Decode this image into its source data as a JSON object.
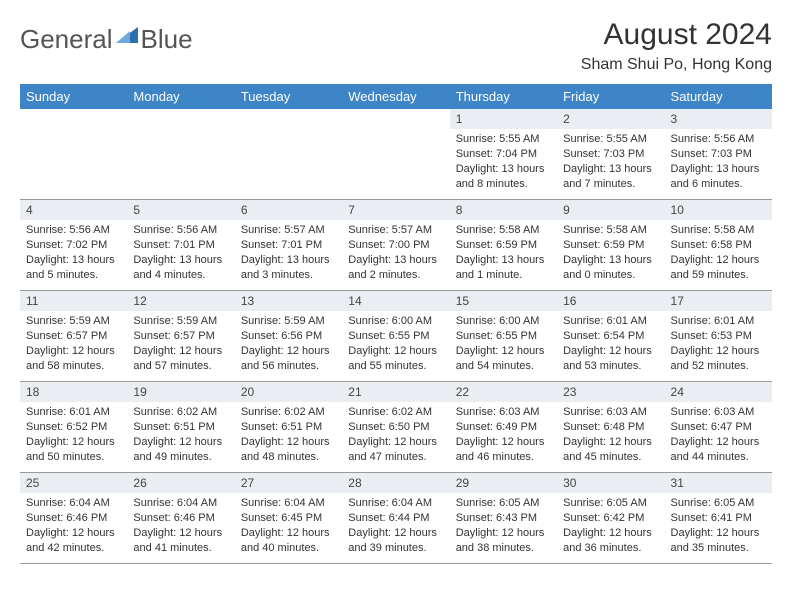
{
  "brand": {
    "name_a": "General",
    "name_b": "Blue",
    "mark_color": "#2a6fb0"
  },
  "header": {
    "month_title": "August 2024",
    "location": "Sham Shui Po, Hong Kong"
  },
  "calendar": {
    "header_bg": "#3d85c6",
    "header_fg": "#ffffff",
    "dayrow_bg": "#eaeef2",
    "grid_line": "#999999",
    "columns": [
      "Sunday",
      "Monday",
      "Tuesday",
      "Wednesday",
      "Thursday",
      "Friday",
      "Saturday"
    ],
    "weeks": [
      [
        {
          "n": "",
          "sr": "",
          "ss": "",
          "dl": ""
        },
        {
          "n": "",
          "sr": "",
          "ss": "",
          "dl": ""
        },
        {
          "n": "",
          "sr": "",
          "ss": "",
          "dl": ""
        },
        {
          "n": "",
          "sr": "",
          "ss": "",
          "dl": ""
        },
        {
          "n": "1",
          "sr": "Sunrise: 5:55 AM",
          "ss": "Sunset: 7:04 PM",
          "dl": "Daylight: 13 hours and 8 minutes."
        },
        {
          "n": "2",
          "sr": "Sunrise: 5:55 AM",
          "ss": "Sunset: 7:03 PM",
          "dl": "Daylight: 13 hours and 7 minutes."
        },
        {
          "n": "3",
          "sr": "Sunrise: 5:56 AM",
          "ss": "Sunset: 7:03 PM",
          "dl": "Daylight: 13 hours and 6 minutes."
        }
      ],
      [
        {
          "n": "4",
          "sr": "Sunrise: 5:56 AM",
          "ss": "Sunset: 7:02 PM",
          "dl": "Daylight: 13 hours and 5 minutes."
        },
        {
          "n": "5",
          "sr": "Sunrise: 5:56 AM",
          "ss": "Sunset: 7:01 PM",
          "dl": "Daylight: 13 hours and 4 minutes."
        },
        {
          "n": "6",
          "sr": "Sunrise: 5:57 AM",
          "ss": "Sunset: 7:01 PM",
          "dl": "Daylight: 13 hours and 3 minutes."
        },
        {
          "n": "7",
          "sr": "Sunrise: 5:57 AM",
          "ss": "Sunset: 7:00 PM",
          "dl": "Daylight: 13 hours and 2 minutes."
        },
        {
          "n": "8",
          "sr": "Sunrise: 5:58 AM",
          "ss": "Sunset: 6:59 PM",
          "dl": "Daylight: 13 hours and 1 minute."
        },
        {
          "n": "9",
          "sr": "Sunrise: 5:58 AM",
          "ss": "Sunset: 6:59 PM",
          "dl": "Daylight: 13 hours and 0 minutes."
        },
        {
          "n": "10",
          "sr": "Sunrise: 5:58 AM",
          "ss": "Sunset: 6:58 PM",
          "dl": "Daylight: 12 hours and 59 minutes."
        }
      ],
      [
        {
          "n": "11",
          "sr": "Sunrise: 5:59 AM",
          "ss": "Sunset: 6:57 PM",
          "dl": "Daylight: 12 hours and 58 minutes."
        },
        {
          "n": "12",
          "sr": "Sunrise: 5:59 AM",
          "ss": "Sunset: 6:57 PM",
          "dl": "Daylight: 12 hours and 57 minutes."
        },
        {
          "n": "13",
          "sr": "Sunrise: 5:59 AM",
          "ss": "Sunset: 6:56 PM",
          "dl": "Daylight: 12 hours and 56 minutes."
        },
        {
          "n": "14",
          "sr": "Sunrise: 6:00 AM",
          "ss": "Sunset: 6:55 PM",
          "dl": "Daylight: 12 hours and 55 minutes."
        },
        {
          "n": "15",
          "sr": "Sunrise: 6:00 AM",
          "ss": "Sunset: 6:55 PM",
          "dl": "Daylight: 12 hours and 54 minutes."
        },
        {
          "n": "16",
          "sr": "Sunrise: 6:01 AM",
          "ss": "Sunset: 6:54 PM",
          "dl": "Daylight: 12 hours and 53 minutes."
        },
        {
          "n": "17",
          "sr": "Sunrise: 6:01 AM",
          "ss": "Sunset: 6:53 PM",
          "dl": "Daylight: 12 hours and 52 minutes."
        }
      ],
      [
        {
          "n": "18",
          "sr": "Sunrise: 6:01 AM",
          "ss": "Sunset: 6:52 PM",
          "dl": "Daylight: 12 hours and 50 minutes."
        },
        {
          "n": "19",
          "sr": "Sunrise: 6:02 AM",
          "ss": "Sunset: 6:51 PM",
          "dl": "Daylight: 12 hours and 49 minutes."
        },
        {
          "n": "20",
          "sr": "Sunrise: 6:02 AM",
          "ss": "Sunset: 6:51 PM",
          "dl": "Daylight: 12 hours and 48 minutes."
        },
        {
          "n": "21",
          "sr": "Sunrise: 6:02 AM",
          "ss": "Sunset: 6:50 PM",
          "dl": "Daylight: 12 hours and 47 minutes."
        },
        {
          "n": "22",
          "sr": "Sunrise: 6:03 AM",
          "ss": "Sunset: 6:49 PM",
          "dl": "Daylight: 12 hours and 46 minutes."
        },
        {
          "n": "23",
          "sr": "Sunrise: 6:03 AM",
          "ss": "Sunset: 6:48 PM",
          "dl": "Daylight: 12 hours and 45 minutes."
        },
        {
          "n": "24",
          "sr": "Sunrise: 6:03 AM",
          "ss": "Sunset: 6:47 PM",
          "dl": "Daylight: 12 hours and 44 minutes."
        }
      ],
      [
        {
          "n": "25",
          "sr": "Sunrise: 6:04 AM",
          "ss": "Sunset: 6:46 PM",
          "dl": "Daylight: 12 hours and 42 minutes."
        },
        {
          "n": "26",
          "sr": "Sunrise: 6:04 AM",
          "ss": "Sunset: 6:46 PM",
          "dl": "Daylight: 12 hours and 41 minutes."
        },
        {
          "n": "27",
          "sr": "Sunrise: 6:04 AM",
          "ss": "Sunset: 6:45 PM",
          "dl": "Daylight: 12 hours and 40 minutes."
        },
        {
          "n": "28",
          "sr": "Sunrise: 6:04 AM",
          "ss": "Sunset: 6:44 PM",
          "dl": "Daylight: 12 hours and 39 minutes."
        },
        {
          "n": "29",
          "sr": "Sunrise: 6:05 AM",
          "ss": "Sunset: 6:43 PM",
          "dl": "Daylight: 12 hours and 38 minutes."
        },
        {
          "n": "30",
          "sr": "Sunrise: 6:05 AM",
          "ss": "Sunset: 6:42 PM",
          "dl": "Daylight: 12 hours and 36 minutes."
        },
        {
          "n": "31",
          "sr": "Sunrise: 6:05 AM",
          "ss": "Sunset: 6:41 PM",
          "dl": "Daylight: 12 hours and 35 minutes."
        }
      ]
    ]
  }
}
